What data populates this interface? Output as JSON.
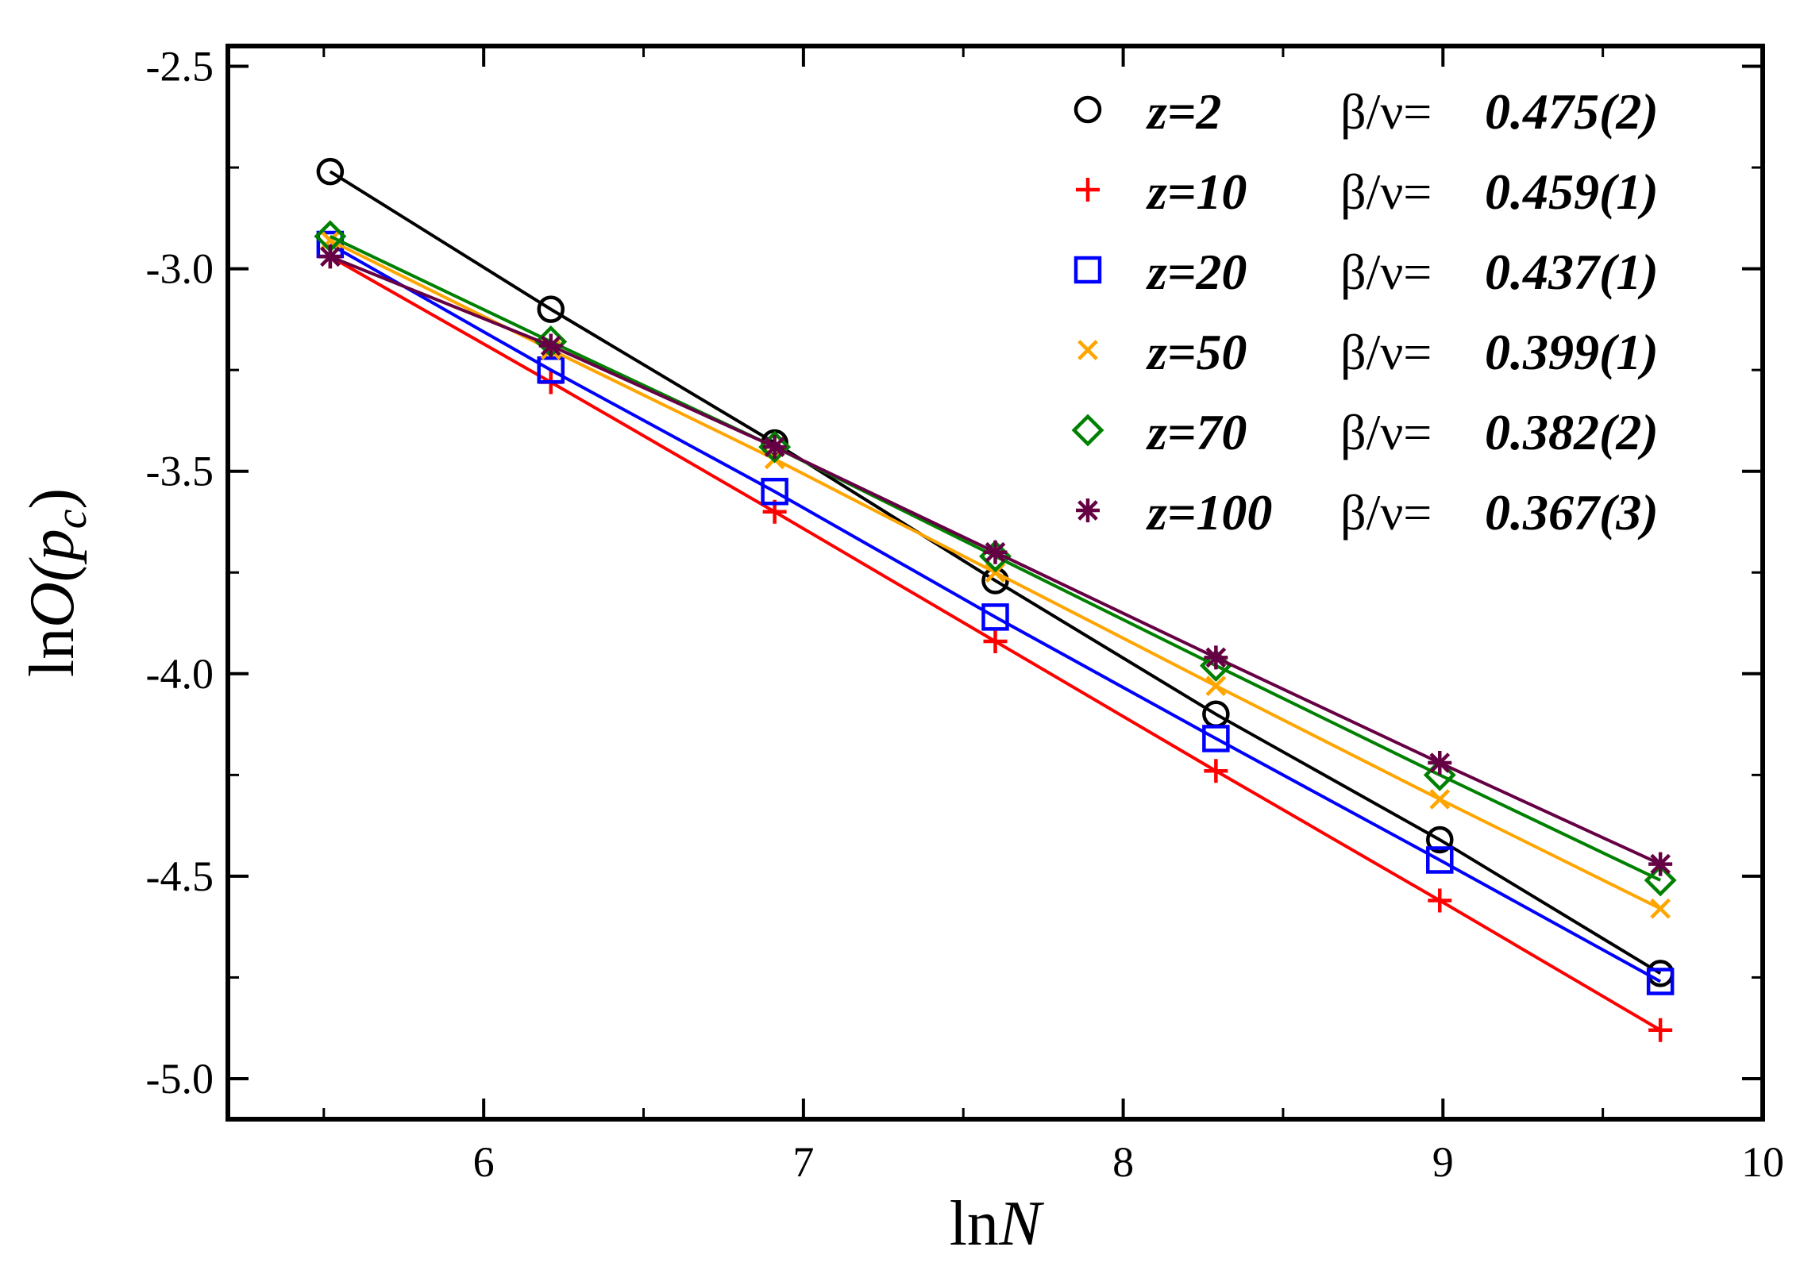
{
  "chart_data": {
    "type": "line",
    "title": "",
    "xlabel_parts": {
      "fn": "ln",
      "var": "N"
    },
    "ylabel_parts": {
      "fn": "ln",
      "var": "O",
      "open": "(",
      "arg": "p",
      "sub": "c",
      "close": ")"
    },
    "xlim": [
      5.2,
      10.0
    ],
    "ylim": [
      -5.1,
      -2.45
    ],
    "x_ticks": [
      6,
      7,
      8,
      9,
      10
    ],
    "x_tick_labels": [
      "6",
      "7",
      "8",
      "9",
      "10"
    ],
    "y_ticks": [
      -5.0,
      -4.5,
      -4.0,
      -3.5,
      -3.0,
      -2.5
    ],
    "y_tick_labels": [
      "-5.0",
      "-4.5",
      "-4.0",
      "-3.5",
      "-3.0",
      "-2.5"
    ],
    "x": [
      5.52,
      6.21,
      6.91,
      7.6,
      8.29,
      8.99,
      9.68
    ],
    "legend_position": "top-right",
    "series": [
      {
        "name": "z=2",
        "exponent_label": "β/ν=",
        "exponent": "0.475(2)",
        "color": "#000000",
        "marker": "circle",
        "values": [
          -2.76,
          -3.1,
          -3.43,
          -3.77,
          -4.1,
          -4.41,
          -4.74
        ]
      },
      {
        "name": "z=10",
        "exponent_label": "β/ν=",
        "exponent": "0.459(1)",
        "color": "#ff0000",
        "marker": "plus",
        "values": [
          -2.97,
          -3.28,
          -3.6,
          -3.92,
          -4.24,
          -4.56,
          -4.88
        ]
      },
      {
        "name": "z=20",
        "exponent_label": "β/ν=",
        "exponent": "0.437(1)",
        "color": "#0000ff",
        "marker": "square",
        "values": [
          -2.94,
          -3.25,
          -3.55,
          -3.86,
          -4.16,
          -4.46,
          -4.76
        ]
      },
      {
        "name": "z=50",
        "exponent_label": "β/ν=",
        "exponent": "0.399(1)",
        "color": "#ffa500",
        "marker": "x",
        "values": [
          -2.93,
          -3.2,
          -3.47,
          -3.75,
          -4.03,
          -4.31,
          -4.58
        ]
      },
      {
        "name": "z=70",
        "exponent_label": "β/ν=",
        "exponent": "0.382(2)",
        "color": "#008000",
        "marker": "diamond",
        "values": [
          -2.92,
          -3.18,
          -3.44,
          -3.71,
          -3.98,
          -4.25,
          -4.51
        ]
      },
      {
        "name": "z=100",
        "exponent_label": "β/ν=",
        "exponent": "0.367(3)",
        "color": "#660044",
        "marker": "star",
        "values": [
          -2.97,
          -3.19,
          -3.44,
          -3.7,
          -3.96,
          -4.22,
          -4.47
        ]
      }
    ]
  }
}
